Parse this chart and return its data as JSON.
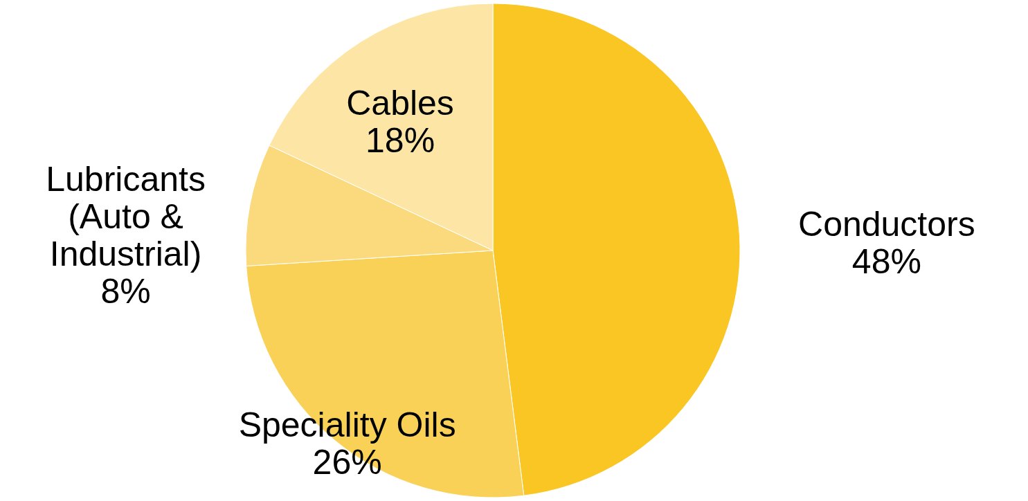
{
  "chart_data": {
    "type": "pie",
    "categories": [
      "Conductors",
      "Speciality Oils",
      "Lubricants (Auto & Industrial)",
      "Cables"
    ],
    "values": [
      48,
      26,
      8,
      18
    ],
    "value_labels": [
      "48%",
      "26%",
      "8%",
      "18%"
    ],
    "colors": [
      "#f9c623",
      "#fad157",
      "#fbda7e",
      "#fde6a5"
    ]
  }
}
